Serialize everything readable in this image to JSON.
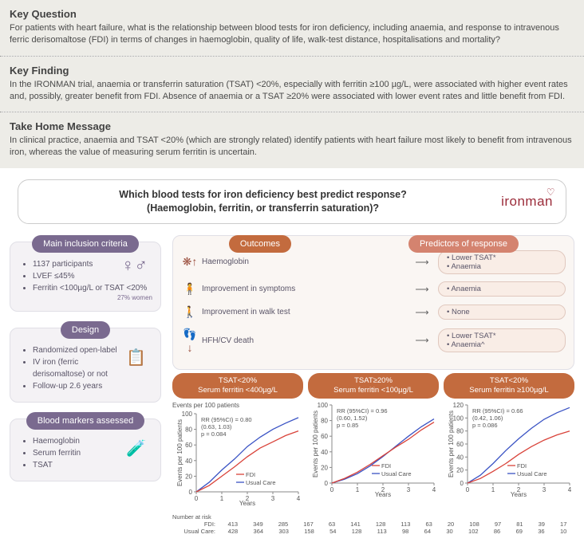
{
  "sections": {
    "keyQuestion": {
      "title": "Key Question",
      "body": "For patients with heart failure, what is the relationship between blood tests for iron deficiency, including anaemia, and response to intravenous ferric derisomaltose (FDI) in terms of changes in haemoglobin, quality of life, walk-test distance, hospitalisations and mortality?"
    },
    "keyFinding": {
      "title": "Key Finding",
      "body": "In the IRONMAN trial, anaemia or transferrin saturation (TSAT) <20%, especially with ferritin ≥100 µg/L, were associated with higher event rates and, possibly, greater benefit from FDI. Absence of anaemia or a TSAT ≥20% were associated with lower event rates and little benefit from FDI."
    },
    "takeHome": {
      "title": "Take Home Message",
      "body": "In clinical practice, anaemia and TSAT <20% (which are strongly related) identify patients with heart failure most likely to benefit from intravenous iron, whereas the value of measuring serum ferritin is uncertain."
    }
  },
  "header": {
    "line1": "Which blood tests for iron deficiency best predict response?",
    "line2": "(Haemoglobin, ferritin, or transferrin saturation)?",
    "logo": "ironman"
  },
  "boxes": {
    "inclusion": {
      "title": "Main inclusion criteria",
      "items": [
        "1137 participants",
        "LVEF ≤45%",
        "Ferritin <100µg/L or TSAT <20%"
      ],
      "womenPct": "27% women"
    },
    "design": {
      "title": "Design",
      "items": [
        "Randomized open-label",
        "IV iron (ferric derisomaltose) or not",
        "Follow-up 2.6 years"
      ]
    },
    "blood": {
      "title": "Blood markers assessed",
      "items": [
        "Haemoglobin",
        "Serum ferritin",
        "TSAT"
      ]
    }
  },
  "outcomes": {
    "title": "Outcomes",
    "predictorsTitle": "Predictors of response",
    "rows": [
      {
        "icon": "❋↑",
        "label": "Haemoglobin",
        "predictors": [
          "Lower TSAT*",
          "Anaemia"
        ]
      },
      {
        "icon": "🧍",
        "label": "Improvement in symptoms",
        "predictors": [
          "Anaemia"
        ]
      },
      {
        "icon": "🚶",
        "label": "Improvement in walk test",
        "predictors": [
          "None"
        ]
      },
      {
        "icon": "👣↓",
        "label": "HFH/CV death",
        "predictors": [
          "Lower TSAT*",
          "Anaemia^"
        ]
      }
    ]
  },
  "charts": {
    "eventsLabel": "Events per 100 patients",
    "xlabel": "Years",
    "ylabel": "Events per 100 patients",
    "numberAtRisk": "Number at risk",
    "fdiLabel": "FDI:",
    "ucLabel": "Usual Care:",
    "legendFDI": "FDI",
    "legendUC": "Usual Care",
    "colors": {
      "fdi": "#d9433a",
      "uc": "#3a53c4",
      "grid": "#e5e5e5",
      "axis": "#888"
    },
    "panels": [
      {
        "title1": "TSAT<20%",
        "title2": "Serum ferritin <400µg/L",
        "rr": "RR (95%CI) = 0.80",
        "ci": "(0.63, 1.03)",
        "p": "p = 0.084",
        "ymax": 100,
        "ystep": 20,
        "fdi": [
          [
            0,
            0
          ],
          [
            0.5,
            8
          ],
          [
            1,
            20
          ],
          [
            1.5,
            32
          ],
          [
            2,
            45
          ],
          [
            2.5,
            56
          ],
          [
            3,
            64
          ],
          [
            3.5,
            72
          ],
          [
            4,
            78
          ]
        ],
        "uc": [
          [
            0,
            0
          ],
          [
            0.5,
            12
          ],
          [
            1,
            28
          ],
          [
            1.5,
            42
          ],
          [
            2,
            58
          ],
          [
            2.5,
            70
          ],
          [
            3,
            80
          ],
          [
            3.5,
            88
          ],
          [
            4,
            95
          ]
        ],
        "riskFDI": [
          413,
          349,
          285,
          167,
          63
        ],
        "riskUC": [
          428,
          364,
          303,
          158,
          54
        ]
      },
      {
        "title1": "TSAT≥20%",
        "title2": "Serum ferritin <100µg/L",
        "rr": "RR (95%CI) = 0.96",
        "ci": "(0.60, 1.52)",
        "p": "p = 0.85",
        "ymax": 100,
        "ystep": 20,
        "fdi": [
          [
            0,
            0
          ],
          [
            0.5,
            6
          ],
          [
            1,
            14
          ],
          [
            1.5,
            24
          ],
          [
            2,
            35
          ],
          [
            2.5,
            46
          ],
          [
            3,
            56
          ],
          [
            3.5,
            68
          ],
          [
            4,
            78
          ]
        ],
        "uc": [
          [
            0,
            0
          ],
          [
            0.5,
            5
          ],
          [
            1,
            12
          ],
          [
            1.5,
            22
          ],
          [
            2,
            34
          ],
          [
            2.5,
            47
          ],
          [
            3,
            60
          ],
          [
            3.5,
            72
          ],
          [
            4,
            82
          ]
        ],
        "riskFDI": [
          141,
          128,
          113,
          63,
          20
        ],
        "riskUC": [
          128,
          113,
          98,
          64,
          30
        ]
      },
      {
        "title1": "TSAT<20%",
        "title2": "Serum ferritin ≥100µg/L",
        "rr": "RR (95%CI) = 0.66",
        "ci": "(0.42, 1.06)",
        "p": "p = 0.086",
        "ymax": 120,
        "ystep": 20,
        "fdi": [
          [
            0,
            0
          ],
          [
            0.5,
            7
          ],
          [
            1,
            18
          ],
          [
            1.5,
            30
          ],
          [
            2,
            44
          ],
          [
            2.5,
            56
          ],
          [
            3,
            66
          ],
          [
            3.5,
            74
          ],
          [
            4,
            80
          ]
        ],
        "uc": [
          [
            0,
            0
          ],
          [
            0.5,
            12
          ],
          [
            1,
            30
          ],
          [
            1.5,
            50
          ],
          [
            2,
            68
          ],
          [
            2.5,
            84
          ],
          [
            3,
            98
          ],
          [
            3.5,
            108
          ],
          [
            4,
            116
          ]
        ],
        "riskFDI": [
          108,
          97,
          81,
          39,
          17
        ],
        "riskUC": [
          102,
          86,
          69,
          36,
          10
        ]
      }
    ]
  }
}
